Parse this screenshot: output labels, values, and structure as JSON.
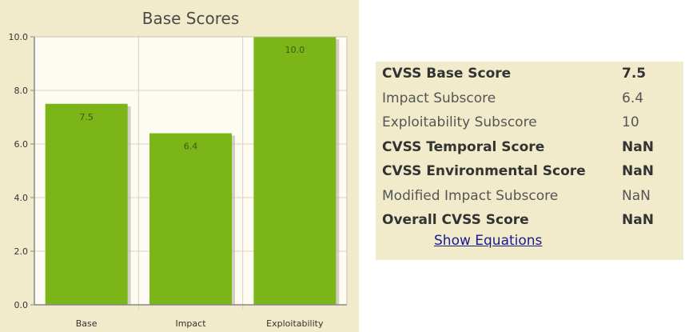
{
  "chart_data": {
    "type": "bar",
    "title": "Base Scores",
    "categories": [
      "Base",
      "Impact",
      "Exploitability"
    ],
    "values": [
      7.5,
      6.4,
      10.0
    ],
    "value_labels": [
      "7.5",
      "6.4",
      "10.0"
    ],
    "y_ticks": [
      "0.0",
      "2.0",
      "4.0",
      "6.0",
      "8.0",
      "10.0"
    ],
    "ylim": [
      0,
      10
    ],
    "xlabel": "",
    "ylabel": "",
    "grid": true,
    "bar_color": "#7cb518",
    "background_color": "#f1ebcb",
    "plot_background_color": "#fdfbf2"
  },
  "scores": {
    "rows": [
      {
        "label": "CVSS Base Score",
        "value": "7.5",
        "bold": true
      },
      {
        "label": "Impact Subscore",
        "value": "6.4",
        "bold": false
      },
      {
        "label": "Exploitability Subscore",
        "value": "10",
        "bold": false
      },
      {
        "label": "CVSS Temporal Score",
        "value": "NaN",
        "bold": true
      },
      {
        "label": "CVSS Environmental Score",
        "value": "NaN",
        "bold": true
      },
      {
        "label": "Modified Impact Subscore",
        "value": "NaN",
        "bold": false
      },
      {
        "label": "Overall CVSS Score",
        "value": "NaN",
        "bold": true
      }
    ],
    "show_equations_label": "Show Equations"
  }
}
